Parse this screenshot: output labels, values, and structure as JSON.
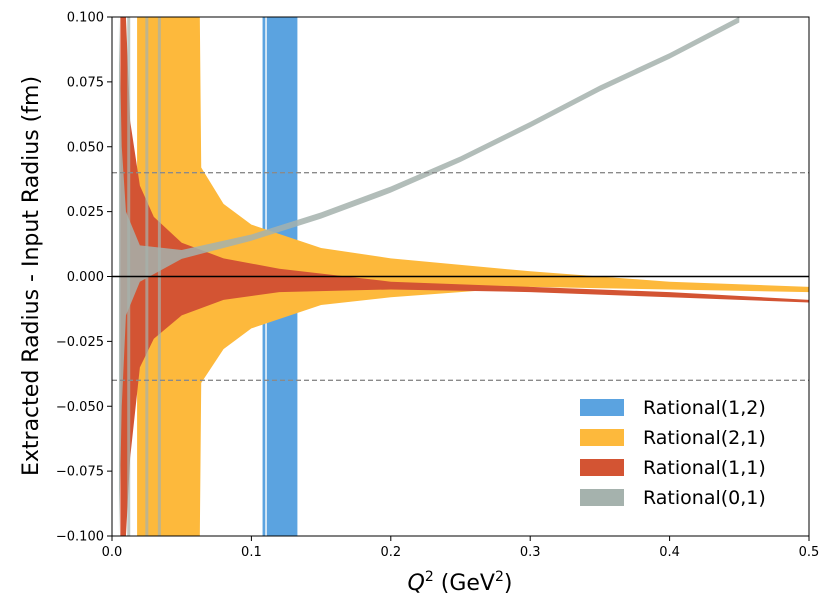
{
  "chart_data": {
    "type": "area",
    "xlabel": "Q² (GeV²)",
    "xlabel_main": "Q",
    "xlabel_sup": "2",
    "xlabel_unit_open": " (GeV",
    "xlabel_unit_sup": "2",
    "xlabel_unit_close": ")",
    "ylabel": "Extracted Radius - Input Radius (fm)",
    "xlim": [
      0.0,
      0.5
    ],
    "ylim": [
      -0.1,
      0.1
    ],
    "x_ticks": [
      0.0,
      0.1,
      0.2,
      0.3,
      0.4,
      0.5
    ],
    "x_tick_labels": [
      "0.0",
      "0.1",
      "0.2",
      "0.3",
      "0.4",
      "0.5"
    ],
    "y_ticks": [
      -0.1,
      -0.075,
      -0.05,
      -0.025,
      0.0,
      0.025,
      0.05,
      0.075,
      0.1
    ],
    "y_tick_labels": [
      "−0.100",
      "−0.075",
      "−0.050",
      "−0.025",
      "0.000",
      "0.025",
      "0.050",
      "0.075",
      "0.100"
    ],
    "reference_lines": [
      {
        "y": 0.04,
        "style": "dashed",
        "color": "#8a8a8a"
      },
      {
        "y": -0.04,
        "style": "dashed",
        "color": "#8a8a8a"
      },
      {
        "y": 0.0,
        "style": "solid",
        "color": "#000000"
      }
    ],
    "legend_position": "bottom-right",
    "series": [
      {
        "name": "Rational(1,2)",
        "color": "#5ba3e0",
        "description": "Vertical band at divergence, extends beyond y range",
        "bands": [
          {
            "x_start": 0.108,
            "x_end": 0.11
          },
          {
            "x_start": 0.111,
            "x_end": 0.133
          }
        ],
        "tail": [
          {
            "x": 0.133,
            "upper": 0.012,
            "lower": -0.012
          },
          {
            "x": 0.15,
            "upper": 0.006,
            "lower": -0.008
          },
          {
            "x": 0.2,
            "upper": 0.003,
            "lower": -0.006
          }
        ]
      },
      {
        "name": "Rational(2,1)",
        "color": "#fdb93c",
        "envelope": [
          {
            "x": 0.018,
            "upper": 0.1,
            "lower": -0.1
          },
          {
            "x": 0.063,
            "upper": 0.1,
            "lower": -0.1
          },
          {
            "x": 0.064,
            "upper": 0.042,
            "lower": -0.041
          },
          {
            "x": 0.08,
            "upper": 0.028,
            "lower": -0.028
          },
          {
            "x": 0.1,
            "upper": 0.02,
            "lower": -0.02
          },
          {
            "x": 0.15,
            "upper": 0.011,
            "lower": -0.011
          },
          {
            "x": 0.2,
            "upper": 0.007,
            "lower": -0.008
          },
          {
            "x": 0.3,
            "upper": 0.002,
            "lower": -0.004
          },
          {
            "x": 0.4,
            "upper": -0.002,
            "lower": -0.005
          },
          {
            "x": 0.5,
            "upper": -0.004,
            "lower": -0.006
          }
        ]
      },
      {
        "name": "Rational(1,1)",
        "color": "#d35433",
        "envelope": [
          {
            "x": 0.006,
            "upper": 0.1,
            "lower": -0.1
          },
          {
            "x": 0.01,
            "upper": 0.1,
            "lower": -0.1
          },
          {
            "x": 0.013,
            "upper": 0.06,
            "lower": -0.07
          },
          {
            "x": 0.02,
            "upper": 0.035,
            "lower": -0.035
          },
          {
            "x": 0.03,
            "upper": 0.023,
            "lower": -0.024
          },
          {
            "x": 0.05,
            "upper": 0.013,
            "lower": -0.015
          },
          {
            "x": 0.08,
            "upper": 0.007,
            "lower": -0.009
          },
          {
            "x": 0.12,
            "upper": 0.003,
            "lower": -0.006
          },
          {
            "x": 0.2,
            "upper": -0.002,
            "lower": -0.005
          },
          {
            "x": 0.3,
            "upper": -0.004,
            "lower": -0.006
          },
          {
            "x": 0.4,
            "upper": -0.006,
            "lower": -0.008
          },
          {
            "x": 0.5,
            "upper": -0.009,
            "lower": -0.01
          }
        ]
      },
      {
        "name": "Rational(0,1)",
        "color": "#a5b2ad",
        "envelope": [
          {
            "x": 0.005,
            "upper": 0.1,
            "lower": -0.1
          },
          {
            "x": 0.007,
            "upper": 0.05,
            "lower": -0.05
          },
          {
            "x": 0.01,
            "upper": 0.025,
            "lower": -0.015
          },
          {
            "x": 0.02,
            "upper": 0.012,
            "lower": -0.002
          },
          {
            "x": 0.05,
            "upper": 0.0102,
            "lower": 0.0068
          },
          {
            "x": 0.1,
            "upper": 0.0162,
            "lower": 0.0138
          },
          {
            "x": 0.15,
            "upper": 0.0247,
            "lower": 0.0223
          },
          {
            "x": 0.2,
            "upper": 0.0347,
            "lower": 0.0323
          },
          {
            "x": 0.25,
            "upper": 0.0463,
            "lower": 0.0441
          },
          {
            "x": 0.3,
            "upper": 0.0596,
            "lower": 0.0574
          },
          {
            "x": 0.35,
            "upper": 0.0736,
            "lower": 0.0714
          },
          {
            "x": 0.4,
            "upper": 0.0861,
            "lower": 0.0839
          },
          {
            "x": 0.45,
            "upper": 0.1001,
            "lower": 0.0979
          }
        ],
        "spikes_x": [
          0.012,
          0.025,
          0.034
        ]
      }
    ],
    "legend_order": [
      "Rational(1,2)",
      "Rational(2,1)",
      "Rational(1,1)",
      "Rational(0,1)"
    ]
  }
}
